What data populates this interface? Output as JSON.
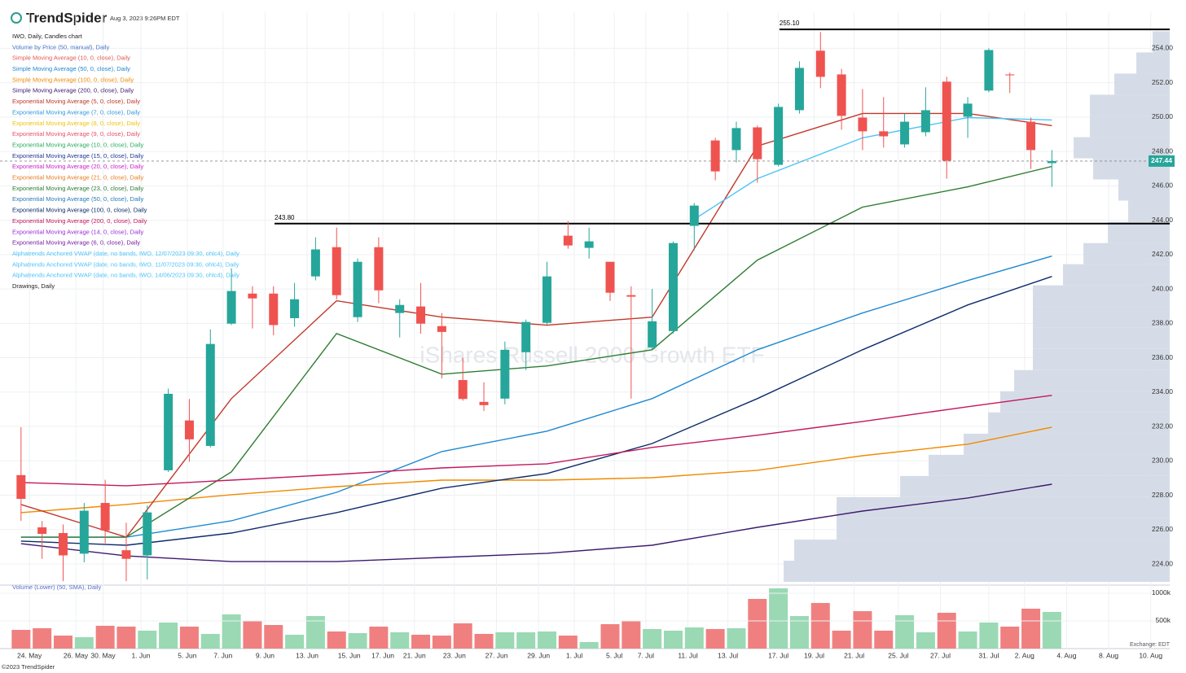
{
  "header": {
    "brand": "TrendSpider",
    "timestamp": "Aug 3, 2023 9:26PM EDT"
  },
  "chart_data": {
    "type": "candlestick",
    "title": "IWO, Daily, Candles chart",
    "watermark": "iShares Russell 2000 Growth ETF",
    "open": [
      229.17,
      226.13,
      225.8,
      224.6,
      227.55,
      224.8,
      224.5,
      229.45,
      232.35,
      230.87,
      237.98,
      239.73,
      239.73,
      238.3,
      240.73,
      242.43,
      238.36,
      242.43,
      238.6,
      238.98,
      237.84,
      234.7,
      233.43,
      233.62,
      236.32,
      238.03,
      243.1,
      242.39,
      241.58,
      239.64,
      236.6,
      237.55,
      243.67,
      248.64,
      248.08,
      249.4,
      247.22,
      250.4,
      253.86,
      252.48,
      249.97,
      249.17,
      248.41,
      249.12,
      252.06,
      250.02,
      251.54,
      252.48,
      249.73,
      247.32
    ],
    "high": [
      231.96,
      226.5,
      226.3,
      227.55,
      228.9,
      226.4,
      227.4,
      234.2,
      233.6,
      237.65,
      241.2,
      240.16,
      240.16,
      240.35,
      243.0,
      243.57,
      241.77,
      243.0,
      239.4,
      240.35,
      238.6,
      236.0,
      234.57,
      236.94,
      238.22,
      241.58,
      243.95,
      243.57,
      241.58,
      240.16,
      240.0,
      242.77,
      245.0,
      248.79,
      249.73,
      249.5,
      250.78,
      253.24,
      254.95,
      252.8,
      251.63,
      251.16,
      250.2,
      251.73,
      252.34,
      251.16,
      254.0,
      252.58,
      249.97,
      248.08
    ],
    "low": [
      226.51,
      224.3,
      223.0,
      224.1,
      225.2,
      223.0,
      223.1,
      229.35,
      229.95,
      230.78,
      237.9,
      237.7,
      237.3,
      237.8,
      240.5,
      239.4,
      238.08,
      239.17,
      237.18,
      237.4,
      234.8,
      233.5,
      232.9,
      233.29,
      235.28,
      237.93,
      242.34,
      241.77,
      239.3,
      233.62,
      236.46,
      237.41,
      242.25,
      246.32,
      247.36,
      246.18,
      247.13,
      250.2,
      251.68,
      249.26,
      248.08,
      248.22,
      248.22,
      248.88,
      246.42,
      248.79,
      251.44,
      251.4,
      246.98,
      245.94
    ],
    "close": [
      227.79,
      225.75,
      224.5,
      227.1,
      225.95,
      224.3,
      227.0,
      233.9,
      231.25,
      236.8,
      239.88,
      239.45,
      237.9,
      239.4,
      242.3,
      239.64,
      241.58,
      239.92,
      239.07,
      237.98,
      237.5,
      233.6,
      233.24,
      236.46,
      238.08,
      240.73,
      242.53,
      242.77,
      239.78,
      239.55,
      238.12,
      242.67,
      244.85,
      246.84,
      249.36,
      247.55,
      250.59,
      252.86,
      252.34,
      250.07,
      249.17,
      248.88,
      249.73,
      250.4,
      247.46,
      250.78,
      253.9,
      252.43,
      248.08,
      247.44
    ],
    "colors": {
      "up": "#26a69a",
      "down": "#ef5350"
    },
    "xlim": [
      -1,
      54.6
    ],
    "xticks": [
      {
        "value": 0.4,
        "label": "24. May"
      },
      {
        "value": 2.6,
        "label": "26. May"
      },
      {
        "value": 3.9,
        "label": "30. May"
      },
      {
        "value": 5.7,
        "label": "1. Jun"
      },
      {
        "value": 7.9,
        "label": "5. Jun"
      },
      {
        "value": 9.6,
        "label": "7. Jun"
      },
      {
        "value": 11.6,
        "label": "9. Jun"
      },
      {
        "value": 13.6,
        "label": "13. Jun"
      },
      {
        "value": 15.6,
        "label": "15. Jun"
      },
      {
        "value": 17.2,
        "label": "17. Jun"
      },
      {
        "value": 18.7,
        "label": "21. Jun"
      },
      {
        "value": 20.6,
        "label": "23. Jun"
      },
      {
        "value": 22.6,
        "label": "27. Jun"
      },
      {
        "value": 24.6,
        "label": "29. Jun"
      },
      {
        "value": 26.3,
        "label": "1. Jul"
      },
      {
        "value": 28.2,
        "label": "5. Jul"
      },
      {
        "value": 29.7,
        "label": "7. Jul"
      },
      {
        "value": 31.7,
        "label": "11. Jul"
      },
      {
        "value": 33.6,
        "label": "13. Jul"
      },
      {
        "value": 36.0,
        "label": "17. Jul"
      },
      {
        "value": 37.7,
        "label": "19. Jul"
      },
      {
        "value": 39.6,
        "label": "21. Jul"
      },
      {
        "value": 41.7,
        "label": "25. Jul"
      },
      {
        "value": 43.7,
        "label": "27. Jul"
      },
      {
        "value": 46.0,
        "label": "31. Jul"
      },
      {
        "value": 47.7,
        "label": "2. Aug"
      },
      {
        "value": 49.7,
        "label": "4. Aug"
      },
      {
        "value": 51.7,
        "label": "8. Aug"
      },
      {
        "value": 53.7,
        "label": "10. Aug"
      }
    ],
    "ylim": [
      222.96,
      256.1
    ],
    "yticks": [
      {
        "value": 224,
        "label": "224.00"
      },
      {
        "value": 226,
        "label": "226.00"
      },
      {
        "value": 228,
        "label": "228.00"
      },
      {
        "value": 230,
        "label": "230.00"
      },
      {
        "value": 232,
        "label": "232.00"
      },
      {
        "value": 234,
        "label": "234.00"
      },
      {
        "value": 236,
        "label": "236.00"
      },
      {
        "value": 238,
        "label": "238.00"
      },
      {
        "value": 240,
        "label": "240.00"
      },
      {
        "value": 242,
        "label": "242.00"
      },
      {
        "value": 244,
        "label": "244.00"
      },
      {
        "value": 246,
        "label": "246.00"
      },
      {
        "value": 248,
        "label": "248.00"
      },
      {
        "value": 250,
        "label": "250.00"
      },
      {
        "value": 252,
        "label": "252.00"
      },
      {
        "value": 254,
        "label": "254.00"
      }
    ],
    "grid": true,
    "last_price": 247.44,
    "levels": [
      {
        "value": 255.1,
        "label": "255.10",
        "x_start": 36.05
      },
      {
        "value": 243.8,
        "label": "243.80",
        "x_start": 12.05
      }
    ],
    "volume_profile": {
      "name": "Volume by Price (50, manual), Daily",
      "color": "#d6dce7",
      "bins": [
        222.96,
        224.19,
        225.42,
        226.66,
        227.89,
        229.12,
        230.35,
        231.58,
        232.82,
        234.05,
        235.28,
        236.51,
        237.74,
        238.98,
        240.21,
        241.44,
        242.67,
        243.9,
        245.14,
        246.37,
        247.6,
        248.83,
        250.06,
        251.3,
        252.53,
        253.76,
        254.99
      ],
      "values": [
        474,
        461,
        409,
        409,
        331,
        296,
        253,
        223,
        208,
        191,
        168,
        168,
        168,
        168,
        131,
        106,
        76,
        51,
        63,
        94,
        118,
        98,
        98,
        68,
        41,
        21
      ]
    },
    "indicators": [
      {
        "name": "Simple Moving Average (10, 0, close), Daily",
        "color": "#e05a4f"
      },
      {
        "name": "Simple Moving Average (50, 0, close), Daily",
        "color": "#1e88d0",
        "x": [
          0,
          5,
          10,
          15,
          20,
          25,
          30,
          35,
          40,
          45,
          49
        ],
        "values": [
          225.56,
          225.56,
          226.51,
          228.17,
          230.54,
          231.73,
          233.62,
          236.46,
          238.6,
          240.49,
          241.91
        ]
      },
      {
        "name": "Simple Moving Average (100, 0, close), Daily",
        "color": "#f08a00",
        "x": [
          0,
          5,
          10,
          15,
          20,
          25,
          30,
          35,
          40,
          45,
          49
        ],
        "values": [
          226.99,
          227.46,
          228.03,
          228.5,
          228.88,
          228.88,
          229.02,
          229.45,
          230.3,
          230.97,
          231.96
        ]
      },
      {
        "name": "Simple Moving Average (200, 0, close), Daily",
        "color": "#3b1a6e",
        "x": [
          0,
          5,
          10,
          15,
          20,
          25,
          30,
          35,
          40,
          45,
          49
        ],
        "values": [
          225.18,
          224.47,
          224.14,
          224.14,
          224.38,
          224.62,
          225.09,
          226.13,
          227.08,
          227.84,
          228.64
        ]
      },
      {
        "name": "Exponential Moving Average (5, 0, close), Daily",
        "color": "#c0392b",
        "x": [
          0,
          5,
          10,
          15,
          20,
          25,
          30,
          35,
          40,
          45,
          49
        ],
        "values": [
          227.46,
          225.56,
          233.62,
          239.31,
          238.36,
          237.89,
          238.36,
          248.31,
          250.21,
          250.21,
          249.5
        ]
      },
      {
        "name": "Exponential Moving Average (7, 0, close), Daily",
        "color": "#3498db"
      },
      {
        "name": "Exponential Moving Average (8, 0, close), Daily",
        "color": "#f1c40f"
      },
      {
        "name": "Exponential Moving Average (9, 0, close), Daily",
        "color": "#e8506a"
      },
      {
        "name": "Exponential Moving Average (10, 0, close), Daily",
        "color": "#27ae60"
      },
      {
        "name": "Exponential Moving Average (15, 0, close), Daily",
        "color": "#1f3a93"
      },
      {
        "name": "Exponential Moving Average (20, 0, close), Daily",
        "color": "#cc22cc"
      },
      {
        "name": "Exponential Moving Average (21, 0, close), Daily",
        "color": "#e67e22"
      },
      {
        "name": "Exponential Moving Average (23, 0, close), Daily",
        "color": "#2e7d32",
        "x": [
          0,
          5,
          10,
          15,
          20,
          25,
          30,
          35,
          40,
          45,
          49
        ],
        "values": [
          225.56,
          225.56,
          229.36,
          237.41,
          235.04,
          235.52,
          236.46,
          241.68,
          244.76,
          245.94,
          247.13
        ]
      },
      {
        "name": "Exponential Moving Average (50, 0, close), Daily",
        "color": "#2a7ab8"
      },
      {
        "name": "Exponential Moving Average (100, 0, close), Daily",
        "color": "#0d2b6b",
        "x": [
          0,
          5,
          10,
          15,
          20,
          25,
          30,
          35,
          40,
          45,
          49
        ],
        "values": [
          225.33,
          225.09,
          225.8,
          226.99,
          228.41,
          229.26,
          231.01,
          233.62,
          236.46,
          239.07,
          240.73
        ]
      },
      {
        "name": "Exponential Moving Average (200, 0, close), Daily",
        "color": "#c2185b",
        "x": [
          0,
          5,
          10,
          15,
          20,
          25,
          30,
          35,
          40,
          45,
          49
        ],
        "values": [
          228.74,
          228.55,
          228.88,
          229.21,
          229.59,
          229.83,
          230.78,
          231.49,
          232.29,
          233.15,
          233.81
        ]
      },
      {
        "name": "Exponential Moving Average (14, 0, close), Daily",
        "color": "#9b30d9"
      },
      {
        "name": "Exponential Moving Average (6, 0, close), Daily",
        "color": "#7b1fa2"
      },
      {
        "name": "Alphatrends Anchored VWAP (date, no bands, IWO, 12/07/2023 09:30, ohlc4), Daily",
        "color": "#4fc3f7",
        "x": [
          32,
          35,
          40,
          45,
          49
        ],
        "values": [
          244.05,
          246.42,
          248.79,
          249.97,
          249.83
        ]
      },
      {
        "name": "Alphatrends Anchored VWAP (date, no bands, IWO, 11/07/2023 09:30, ohlc4), Daily",
        "color": "#4fc3f7"
      },
      {
        "name": "Alphatrends Anchored VWAP (date, no bands, IWO, 14/06/2023 09:30, ohlc4), Daily",
        "color": "#4fc3f7"
      }
    ],
    "drawings": "Drawings, Daily",
    "volume": {
      "title": "Volume (Lower) (50, SMA), Daily",
      "values": [
        338,
        368,
        235,
        206,
        412,
        397,
        324,
        471,
        397,
        265,
        618,
        500,
        426,
        250,
        588,
        309,
        279,
        397,
        294,
        250,
        235,
        456,
        265,
        294,
        294,
        309,
        235,
        118,
        441,
        500,
        353,
        324,
        382,
        353,
        368,
        897,
        1088,
        588,
        824,
        324,
        676,
        324,
        603,
        294,
        647,
        309,
        471,
        397,
        721,
        662
      ],
      "colors": {
        "up": "#9ad9b4",
        "down": "#f08080"
      },
      "ylim": [
        0,
        1132
      ],
      "yticks": [
        {
          "value": 1000,
          "label": "1000k"
        },
        {
          "value": 500,
          "label": "500k"
        }
      ]
    },
    "exchange": "Exchange: EDT"
  },
  "footer": "©2023 TrendSpider"
}
